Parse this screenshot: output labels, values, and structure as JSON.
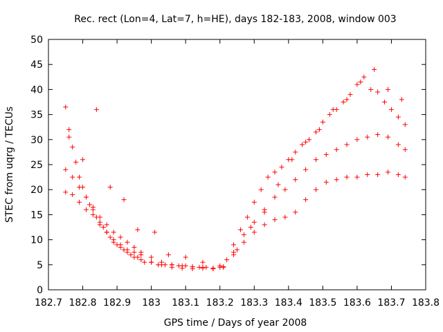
{
  "chart_data": {
    "type": "scatter",
    "title": "Rec. rect (Lon=4, Lat=7, h=HE), days 182-183, 2008, window 003",
    "xlabel": "GPS time / Days of year 2008",
    "ylabel": "STEC from uqrg / TECUs",
    "xlim": [
      182.7,
      183.8
    ],
    "ylim": [
      0,
      50
    ],
    "x_ticks": [
      "182.7",
      "182.8",
      "182.9",
      "183",
      "183.1",
      "183.2",
      "183.3",
      "183.4",
      "183.5",
      "183.6",
      "183.7",
      "183.8"
    ],
    "y_ticks": [
      "0",
      "5",
      "10",
      "15",
      "20",
      "25",
      "30",
      "35",
      "40",
      "45",
      "50"
    ],
    "grid": false,
    "legend": "none",
    "marker": "plus",
    "color": "#ff0000",
    "series": [
      {
        "x": [
          182.75,
          182.76,
          182.77,
          182.78,
          182.79,
          182.8,
          182.81,
          182.82,
          182.83,
          182.84,
          182.85,
          182.86,
          182.87,
          182.88,
          182.89,
          182.9,
          182.91,
          182.92,
          182.93,
          182.94,
          182.95,
          182.96,
          182.97,
          182.98,
          183.0,
          183.02,
          183.04,
          183.06,
          183.08,
          183.1,
          183.12,
          183.14,
          183.16,
          183.18,
          183.2,
          183.22,
          183.24,
          183.26,
          183.28,
          183.3,
          183.32,
          183.34,
          183.36,
          183.38,
          183.4,
          183.42,
          183.44,
          183.46,
          183.48,
          183.5,
          183.52,
          183.54,
          183.56,
          183.58,
          183.6,
          183.62,
          183.64,
          183.66,
          183.68,
          183.7,
          183.72,
          183.74
        ],
        "y": [
          36.5,
          32,
          28.5,
          25.5,
          22.5,
          20.5,
          18.5,
          17,
          16,
          14.5,
          13.5,
          12.5,
          11.5,
          10.5,
          9.5,
          9,
          8.5,
          8,
          7.5,
          7,
          6.5,
          6.5,
          6,
          5.5,
          5.5,
          5,
          5,
          5,
          4.8,
          4.8,
          4.6,
          4.5,
          4.5,
          4.3,
          4.5,
          6,
          9,
          12,
          14.5,
          17.5,
          20,
          22.5,
          23.5,
          24.5,
          26,
          27.5,
          29,
          30,
          31.5,
          33.5,
          35,
          36,
          37.5,
          39,
          41,
          42.5,
          40,
          39.5,
          37.5,
          36,
          34.5,
          33
        ]
      },
      {
        "x": [
          182.75,
          182.77,
          182.79,
          182.81,
          182.83,
          182.85,
          182.87,
          182.89,
          182.91,
          182.93,
          182.95,
          182.97,
          183.0,
          183.03,
          183.06,
          183.09,
          183.12,
          183.15,
          183.18,
          183.21,
          183.24,
          183.27,
          183.3,
          183.33,
          183.36,
          183.39,
          183.42,
          183.45,
          183.48,
          183.51,
          183.54,
          183.57,
          183.6,
          183.63,
          183.66,
          183.69,
          183.72,
          183.74
        ],
        "y": [
          24,
          22.5,
          20.5,
          18.5,
          16.5,
          14.5,
          13,
          11.5,
          10.5,
          9.5,
          8.5,
          7.5,
          6.5,
          5.5,
          5,
          4.8,
          4.6,
          4.5,
          4.3,
          4.6,
          7.5,
          11,
          13.5,
          15.5,
          18.5,
          20,
          22,
          24,
          26,
          27,
          28,
          29,
          30,
          30.5,
          31,
          30.5,
          29,
          28
        ]
      },
      {
        "x": [
          182.75,
          182.77,
          182.79,
          182.81,
          182.83,
          182.85,
          182.87,
          182.89,
          182.91,
          182.93,
          182.95,
          182.97,
          183.0,
          183.03,
          183.06,
          183.09,
          183.12,
          183.15,
          183.18,
          183.21,
          183.24,
          183.27,
          183.3,
          183.33,
          183.36,
          183.39,
          183.42,
          183.45,
          183.48,
          183.51,
          183.54,
          183.57,
          183.6,
          183.63,
          183.66,
          183.69,
          183.72,
          183.74
        ],
        "y": [
          19.5,
          19,
          17.5,
          16,
          15,
          13,
          11.5,
          10,
          9,
          8,
          7.5,
          7,
          5.5,
          5,
          4.5,
          4.3,
          4.2,
          4.3,
          4.2,
          4.5,
          7,
          9.5,
          11.5,
          13,
          14,
          14.5,
          15.5,
          18,
          20,
          21.5,
          22,
          22.5,
          22.5,
          23,
          23,
          23.5,
          23,
          22.5
        ]
      },
      {
        "x": [
          182.76,
          182.8,
          182.84,
          182.88,
          182.92,
          182.96,
          183.01,
          183.05,
          183.1,
          183.15,
          183.2,
          183.25,
          183.29,
          183.33,
          183.37,
          183.41,
          183.45,
          183.49,
          183.53,
          183.57,
          183.61,
          183.65,
          183.69,
          183.73
        ],
        "y": [
          30.5,
          26,
          36,
          20.5,
          18,
          12,
          11.5,
          7,
          6.5,
          5.5,
          4.8,
          8,
          12.5,
          16,
          21,
          26,
          29.5,
          32,
          36,
          38,
          41.5,
          44,
          40,
          38
        ]
      }
    ]
  }
}
